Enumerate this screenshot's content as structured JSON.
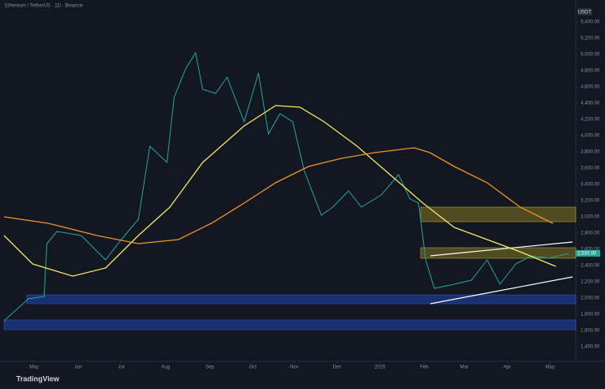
{
  "chart_data": {
    "type": "line",
    "title": "Ethereum / TetherUS · 1D · Binance",
    "currency": "USDT",
    "brand": "TradingView",
    "xlim": [
      0,
      400
    ],
    "ylim": [
      1400,
      5600
    ],
    "xticks": [
      {
        "value": 21,
        "label": "May"
      },
      {
        "value": 52,
        "label": "Jun"
      },
      {
        "value": 82,
        "label": "Jul"
      },
      {
        "value": 113,
        "label": "Aug"
      },
      {
        "value": 144,
        "label": "Sep"
      },
      {
        "value": 174,
        "label": "Oct"
      },
      {
        "value": 203,
        "label": "Nov"
      },
      {
        "value": 233,
        "label": "Dec"
      },
      {
        "value": 263,
        "label": "2025"
      },
      {
        "value": 294,
        "label": "Feb"
      },
      {
        "value": 322,
        "label": "Mar"
      },
      {
        "value": 352,
        "label": "Apr"
      },
      {
        "value": 382,
        "label": "May"
      }
    ],
    "yticks": [
      {
        "value": 5400,
        "label": "5,400.00"
      },
      {
        "value": 5200,
        "label": "5,200.00"
      },
      {
        "value": 5000,
        "label": "5,000.00"
      },
      {
        "value": 4800,
        "label": "4,800.00"
      },
      {
        "value": 4600,
        "label": "4,600.00"
      },
      {
        "value": 4400,
        "label": "4,400.00"
      },
      {
        "value": 4200,
        "label": "4,200.00"
      },
      {
        "value": 4000,
        "label": "4,000.00"
      },
      {
        "value": 3800,
        "label": "3,800.00"
      },
      {
        "value": 3600,
        "label": "3,600.00"
      },
      {
        "value": 3400,
        "label": "3,400.00"
      },
      {
        "value": 3200,
        "label": "3,200.00"
      },
      {
        "value": 3000,
        "label": "3,000.00"
      },
      {
        "value": 2800,
        "label": "2,800.00"
      },
      {
        "value": 2600,
        "label": "2,600.00"
      },
      {
        "value": 2400,
        "label": "2,400.00"
      },
      {
        "value": 2200,
        "label": "2,200.00"
      },
      {
        "value": 2000,
        "label": "2,000.00"
      },
      {
        "value": 1800,
        "label": "1,800.00"
      },
      {
        "value": 1600,
        "label": "1,600.00"
      },
      {
        "value": 1400,
        "label": "1,400.00"
      }
    ],
    "last_price": {
      "value": 2550,
      "label": "2,550.00"
    },
    "series": [
      {
        "color": "#26a69a",
        "x": [
          0,
          17,
          28,
          30,
          37,
          54,
          71,
          82,
          94,
          102,
          114,
          119,
          127,
          134,
          139,
          148,
          156,
          168,
          178,
          185,
          193,
          202,
          210,
          222,
          230,
          241,
          250,
          264,
          276,
          284,
          290,
          295,
          301,
          315,
          327,
          338,
          347,
          358,
          369,
          381,
          395
        ],
        "values": [
          1720,
          1990,
          2020,
          2670,
          2820,
          2770,
          2470,
          2720,
          2970,
          3870,
          3670,
          4470,
          4820,
          5020,
          4570,
          4520,
          4720,
          4170,
          4770,
          4020,
          4270,
          4170,
          3570,
          3020,
          3120,
          3320,
          3120,
          3270,
          3520,
          3220,
          3170,
          2470,
          2120,
          2170,
          2220,
          2470,
          2170,
          2420,
          2520,
          2490,
          2550
        ]
      },
      {
        "color": "#f5e663",
        "x": [
          0,
          20,
          48,
          71,
          94,
          116,
          139,
          168,
          190,
          207,
          224,
          247,
          270,
          293,
          315,
          338,
          361,
          386
        ],
        "values": [
          2770,
          2420,
          2270,
          2370,
          2770,
          3120,
          3670,
          4120,
          4370,
          4350,
          4170,
          3870,
          3520,
          3170,
          2870,
          2720,
          2570,
          2390
        ]
      },
      {
        "color": "#f0932b",
        "x": [
          0,
          31,
          65,
          94,
          122,
          145,
          168,
          190,
          213,
          236,
          259,
          287,
          298,
          315,
          338,
          361,
          384
        ],
        "values": [
          3000,
          2920,
          2770,
          2670,
          2720,
          2920,
          3170,
          3420,
          3620,
          3720,
          3790,
          3850,
          3790,
          3620,
          3420,
          3120,
          2920
        ]
      }
    ]
  }
}
